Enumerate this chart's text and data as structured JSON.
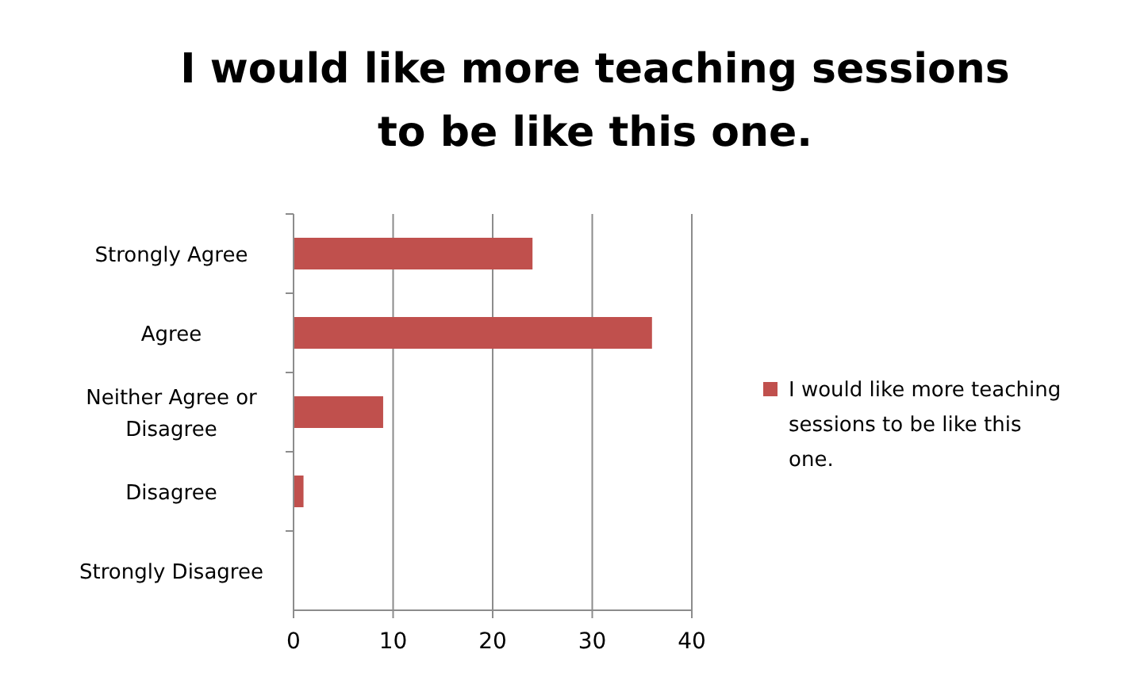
{
  "chart_data": {
    "type": "bar",
    "orientation": "horizontal",
    "title": "I would like more teaching sessions to be like this one.",
    "categories": [
      "Strongly Agree",
      "Agree",
      "Neither Agree or Disagree",
      "Disagree",
      "Strongly Disagree"
    ],
    "series": [
      {
        "name": "I would like more teaching sessions to be like this one.",
        "color": "#c0504d",
        "values": [
          24,
          36,
          9,
          1,
          0
        ]
      }
    ],
    "xlim": [
      0,
      40
    ],
    "xticks": [
      0,
      10,
      20,
      30,
      40
    ],
    "grid": "x",
    "legend": "right"
  }
}
